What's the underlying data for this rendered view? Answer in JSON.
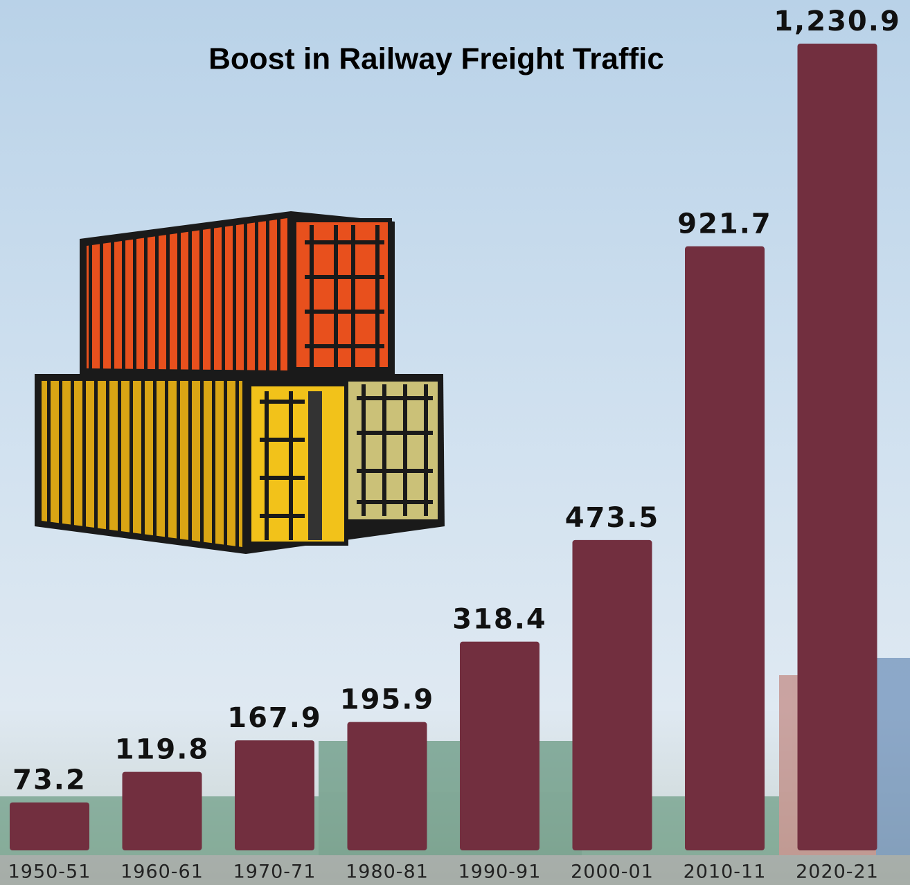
{
  "chart_data": {
    "type": "bar",
    "title": "Boost in Railway Freight Traffic",
    "categories": [
      "1950-51",
      "1960-61",
      "1970-71",
      "1980-81",
      "1990-91",
      "2000-01",
      "2010-11",
      "2020-21"
    ],
    "values": [
      73.2,
      119.8,
      167.9,
      195.9,
      318.4,
      473.5,
      921.7,
      1230.9
    ],
    "value_labels": [
      "73.2",
      "119.8",
      "167.9",
      "195.9",
      "318.4",
      "473.5",
      "921.7",
      "1,230.9"
    ],
    "color": "#722f3f"
  }
}
